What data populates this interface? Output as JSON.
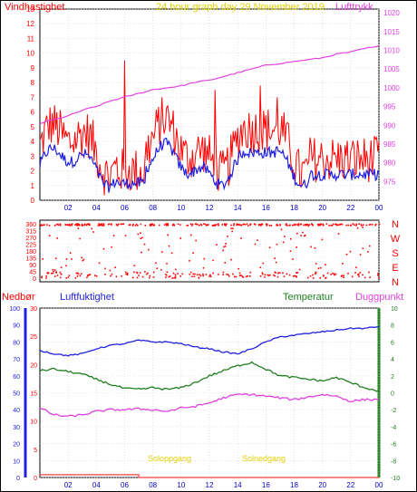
{
  "chart_data": [
    {
      "type": "line",
      "id": "wind_pressure",
      "title": "24 hour graph day   29 November 2019",
      "left_label": "Vindhastighet",
      "right_label": "Lufttrykk",
      "x_ticks": [
        "02",
        "04",
        "06",
        "08",
        "10",
        "12",
        "14",
        "16",
        "18",
        "20",
        "22",
        "00"
      ],
      "y_left_ticks": [
        "0",
        "1",
        "2",
        "3",
        "4",
        "5",
        "6",
        "7",
        "8",
        "9",
        "10",
        "11",
        "12",
        "13"
      ],
      "y_left_range": [
        0,
        13
      ],
      "y_right_ticks": [
        "975",
        "980",
        "985",
        "990",
        "995",
        "1000",
        "1005",
        "1010",
        "1015",
        "1020"
      ],
      "y_right_range": [
        970,
        1021
      ],
      "series": [
        {
          "name": "Vindhastighet",
          "color": "#ff0000",
          "style": "gust"
        },
        {
          "name": "Lufttrykk",
          "color": "#e040e0",
          "hours": [
            0,
            1,
            2,
            3,
            4,
            5,
            6,
            7,
            8,
            9,
            10,
            11,
            12,
            13,
            14,
            15,
            16,
            17,
            18,
            19,
            20,
            21,
            22,
            23,
            24
          ],
          "values": [
            990.5,
            991.5,
            992.5,
            994,
            995,
            996.5,
            997.5,
            998.5,
            999.5,
            1000,
            1000.5,
            1001.5,
            1002,
            1003,
            1004,
            1005,
            1006,
            1006.5,
            1007,
            1007.5,
            1008,
            1009,
            1009.5,
            1010.5,
            1011
          ]
        }
      ],
      "grid": true
    },
    {
      "type": "scatter",
      "id": "wind_direction",
      "y_left_ticks": [
        "0",
        "45",
        "90",
        "135",
        "180",
        "225",
        "270",
        "315",
        "360"
      ],
      "y_range": [
        0,
        360
      ],
      "right_letters": [
        "N",
        "W",
        "S",
        "E",
        "N"
      ],
      "series": [
        {
          "name": "Vindretning",
          "color": "#ff0000"
        }
      ]
    },
    {
      "type": "line",
      "id": "temp_humidity",
      "labels": {
        "nedbor": "Nedbør",
        "fukt": "Luftfuktighet",
        "temp": "Temperatur",
        "dugg": "Duggpunkt"
      },
      "x_ticks": [
        "02",
        "04",
        "06",
        "08",
        "10",
        "12",
        "14",
        "16",
        "18",
        "20",
        "22",
        "00"
      ],
      "y_humidity_ticks": [
        "0",
        "10",
        "20",
        "30",
        "40",
        "50",
        "60",
        "70",
        "80",
        "90",
        "100"
      ],
      "y_precip_ticks": [
        "0",
        "5",
        "10",
        "15",
        "20",
        "25",
        "30"
      ],
      "y_temp_ticks": [
        "-10",
        "-8",
        "-6",
        "-4",
        "-2",
        "0",
        "2",
        "4",
        "6",
        "8",
        "10"
      ],
      "y_temp_range": [
        -10,
        10
      ],
      "sun_labels": {
        "sunrise": "Soloppgang",
        "sunset": "Solnedgang"
      },
      "series": [
        {
          "name": "Luftfuktighet",
          "color": "#2020e0",
          "hours": [
            0,
            1,
            2,
            3,
            4,
            5,
            6,
            7,
            8,
            9,
            10,
            11,
            12,
            13,
            14,
            15,
            16,
            17,
            18,
            19,
            20,
            21,
            22,
            23,
            24
          ],
          "values": [
            75,
            73,
            72,
            73,
            76,
            78,
            79,
            81,
            80,
            80,
            79,
            77,
            76,
            74,
            73,
            76,
            80,
            83,
            84,
            85,
            86,
            87,
            88,
            88,
            89
          ]
        },
        {
          "name": "Temperatur",
          "color": "#208020",
          "hours": [
            0,
            1,
            2,
            3,
            4,
            5,
            6,
            7,
            8,
            9,
            10,
            11,
            12,
            13,
            14,
            15,
            16,
            17,
            18,
            19,
            20,
            21,
            22,
            23,
            24
          ],
          "values": [
            2.6,
            2.8,
            2.5,
            2.2,
            1.6,
            1.0,
            0.5,
            0.4,
            0.6,
            0.4,
            0.6,
            1.2,
            2.0,
            2.6,
            3.2,
            3.6,
            2.8,
            2.0,
            1.8,
            1.6,
            1.4,
            1.8,
            1.2,
            0.6,
            0.2
          ]
        },
        {
          "name": "Duggpunkt",
          "color": "#e040e0",
          "hours": [
            0,
            1,
            2,
            3,
            4,
            5,
            6,
            7,
            8,
            9,
            10,
            11,
            12,
            13,
            14,
            15,
            16,
            17,
            18,
            19,
            20,
            21,
            22,
            23,
            24
          ],
          "values": [
            -1.8,
            -2.6,
            -2.8,
            -2.6,
            -2.2,
            -2.0,
            -2.0,
            -1.9,
            -2.0,
            -2.2,
            -1.8,
            -1.6,
            -1.2,
            -0.6,
            -0.2,
            -0.2,
            -0.4,
            -0.6,
            -0.8,
            -0.5,
            -0.2,
            -0.4,
            -1.0,
            -0.8,
            -0.8
          ]
        },
        {
          "name": "Nedbør",
          "color": "#ff4040",
          "hours": [
            0,
            7,
            7.01,
            24
          ],
          "values": [
            0.5,
            0.5,
            0,
            0
          ]
        }
      ]
    }
  ]
}
